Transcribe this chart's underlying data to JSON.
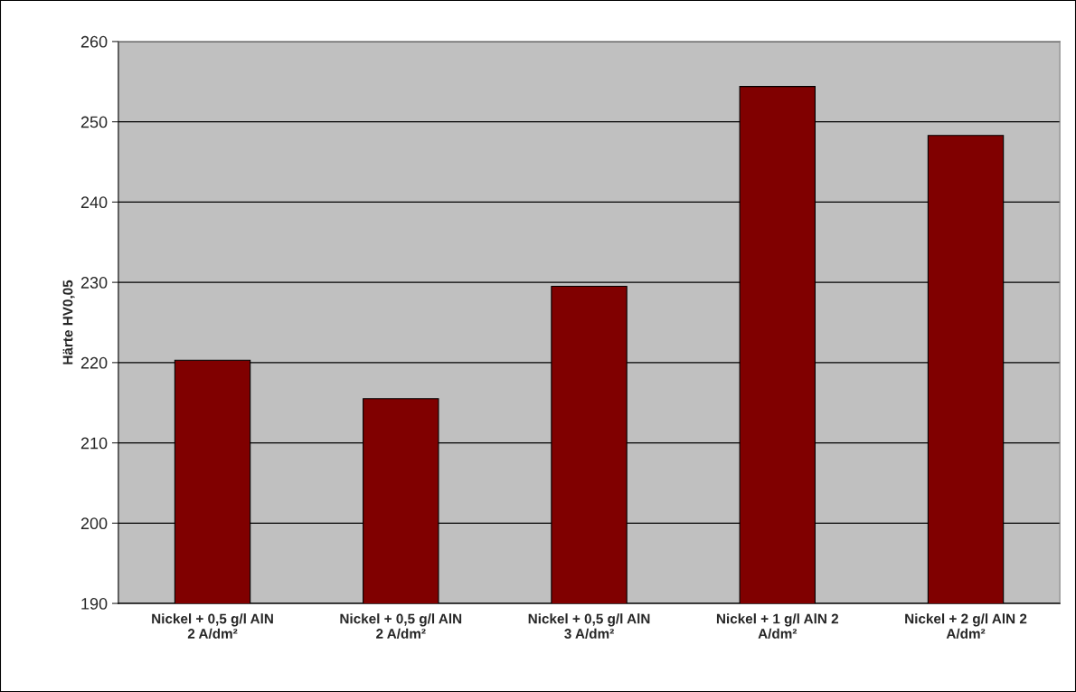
{
  "chart_data": {
    "type": "bar",
    "ylabel": "Härte HV0,05",
    "categories": [
      "Nickel + 0,5 g/l AlN\n2 A/dm²",
      "Nickel + 0,5 g/l AlN\n2 A/dm²",
      "Nickel + 0,5 g/l AlN\n3 A/dm²",
      "Nickel + 1 g/l AlN 2\nA/dm²",
      "Nickel + 2 g/l AlN 2\nA/dm²"
    ],
    "values": [
      220.3,
      215.5,
      229.5,
      254.4,
      248.3
    ],
    "color": "#800000",
    "ylim": [
      190,
      260
    ],
    "yticks": [
      190,
      200,
      210,
      220,
      230,
      240,
      250,
      260
    ],
    "grid": "y"
  }
}
